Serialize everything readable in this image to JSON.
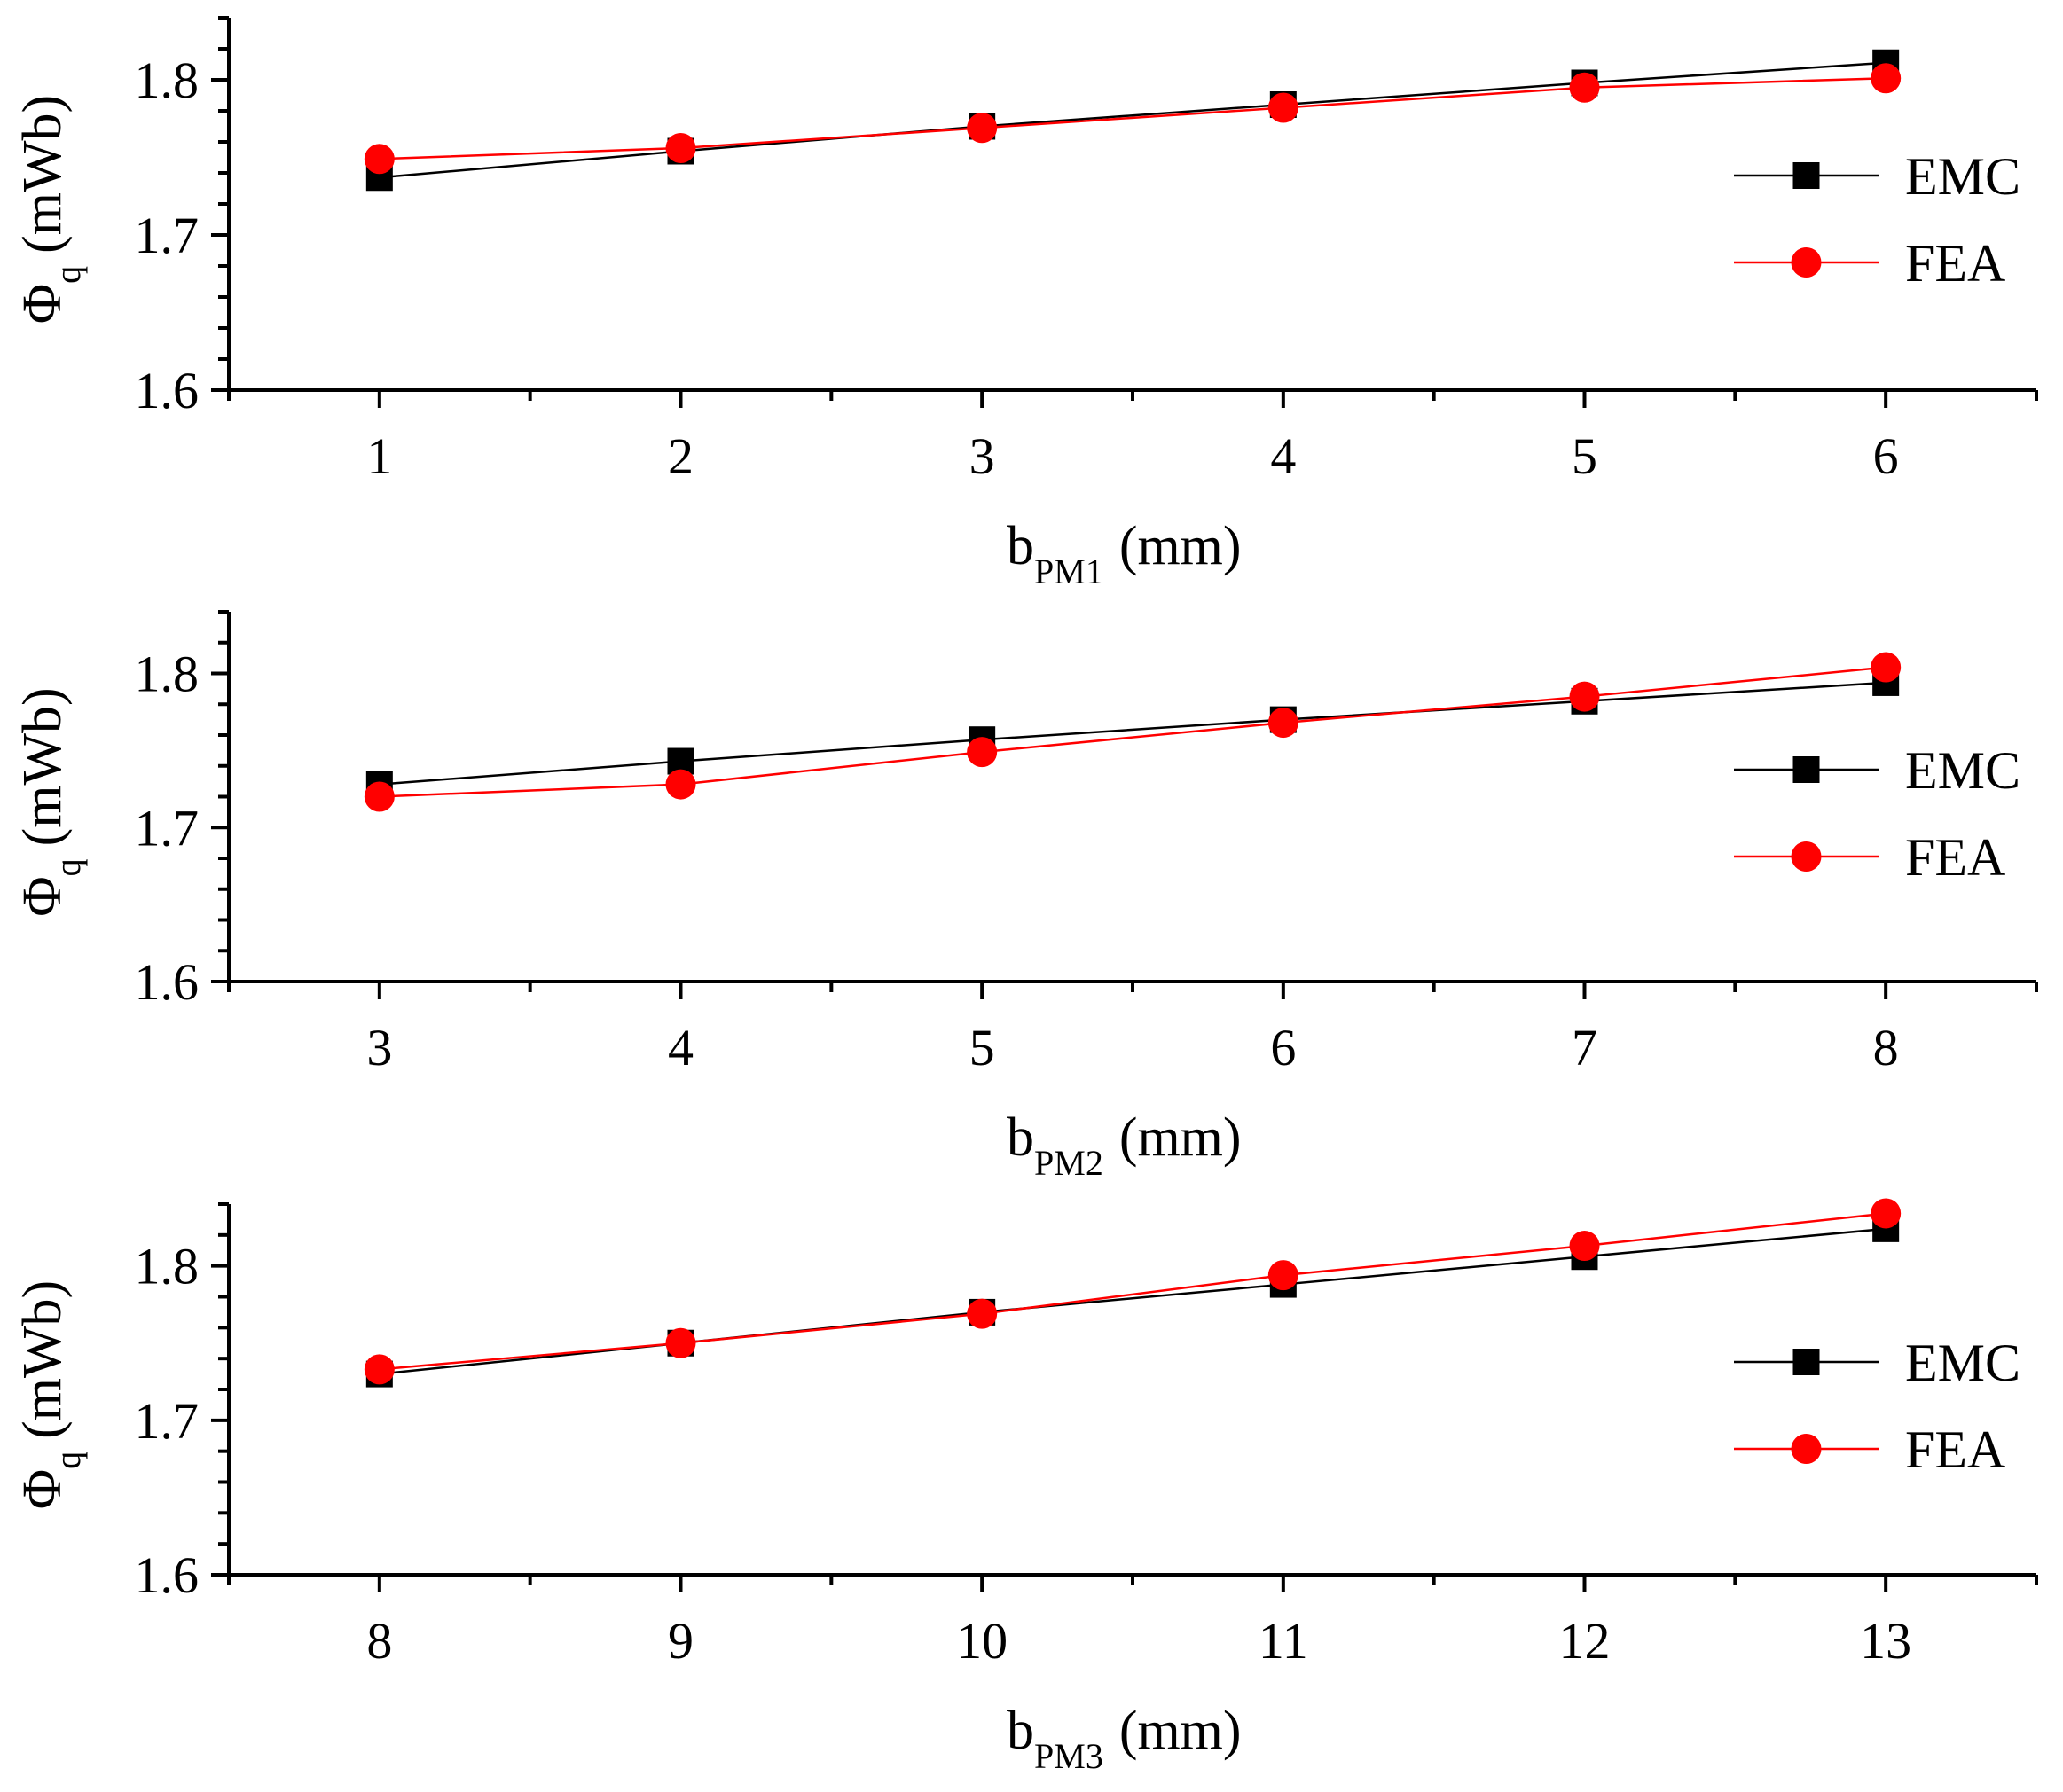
{
  "chart_data": [
    {
      "type": "line",
      "x": [
        1,
        2,
        3,
        4,
        5,
        6
      ],
      "xlim": [
        0.5,
        6.5
      ],
      "ylim": [
        1.6,
        1.84
      ],
      "ylabel": "Φq (mWb)",
      "ylabel_main": "Φ",
      "ylabel_sub": "q",
      "ylabel_unit": "(mWb)",
      "xlabel": "bPM1 (mm)",
      "xlabel_main": "b",
      "xlabel_sub": "PM1",
      "xlabel_unit": "(mm)",
      "xticks": [
        "1",
        "2",
        "3",
        "4",
        "5",
        "6"
      ],
      "yticks": [
        "1.6",
        "1.7",
        "1.8"
      ],
      "legend_position": "right",
      "series": [
        {
          "name": "EMC",
          "color": "#000000",
          "marker": "square",
          "values": [
            1.737,
            1.754,
            1.77,
            1.784,
            1.798,
            1.811
          ]
        },
        {
          "name": "FEA",
          "color": "#ff0000",
          "marker": "circle",
          "values": [
            1.749,
            1.756,
            1.769,
            1.782,
            1.795,
            1.801
          ]
        }
      ]
    },
    {
      "type": "line",
      "x": [
        3,
        4,
        5,
        6,
        7,
        8
      ],
      "xlim": [
        2.5,
        8.5
      ],
      "ylim": [
        1.6,
        1.84
      ],
      "ylabel": "Φq (mWb)",
      "ylabel_main": "Φ",
      "ylabel_sub": "q",
      "ylabel_unit": "(mWb)",
      "xlabel": "bPM2 (mm)",
      "xlabel_main": "b",
      "xlabel_sub": "PM2",
      "xlabel_unit": "(mm)",
      "xticks": [
        "3",
        "4",
        "5",
        "6",
        "7",
        "8"
      ],
      "yticks": [
        "1.6",
        "1.7",
        "1.8"
      ],
      "legend_position": "right",
      "series": [
        {
          "name": "EMC",
          "color": "#000000",
          "marker": "square",
          "values": [
            1.728,
            1.743,
            1.757,
            1.77,
            1.782,
            1.794
          ]
        },
        {
          "name": "FEA",
          "color": "#ff0000",
          "marker": "circle",
          "values": [
            1.72,
            1.728,
            1.749,
            1.768,
            1.785,
            1.804
          ]
        }
      ]
    },
    {
      "type": "line",
      "x": [
        8,
        9,
        10,
        11,
        12,
        13
      ],
      "xlim": [
        7.5,
        13.5
      ],
      "ylim": [
        1.6,
        1.84
      ],
      "ylabel": "Φq (mWb)",
      "ylabel_main": "Φ",
      "ylabel_sub": "q",
      "ylabel_unit": "(mWb)",
      "xlabel": "bPM3 (mm)",
      "xlabel_main": "b",
      "xlabel_sub": "PM3",
      "xlabel_unit": "(mm)",
      "xticks": [
        "8",
        "9",
        "10",
        "11",
        "12",
        "13"
      ],
      "yticks": [
        "1.6",
        "1.7",
        "1.8"
      ],
      "legend_position": "right",
      "series": [
        {
          "name": "EMC",
          "color": "#000000",
          "marker": "square",
          "values": [
            1.73,
            1.75,
            1.77,
            1.788,
            1.806,
            1.824
          ]
        },
        {
          "name": "FEA",
          "color": "#ff0000",
          "marker": "circle",
          "values": [
            1.733,
            1.75,
            1.769,
            1.794,
            1.813,
            1.834
          ]
        }
      ]
    }
  ]
}
